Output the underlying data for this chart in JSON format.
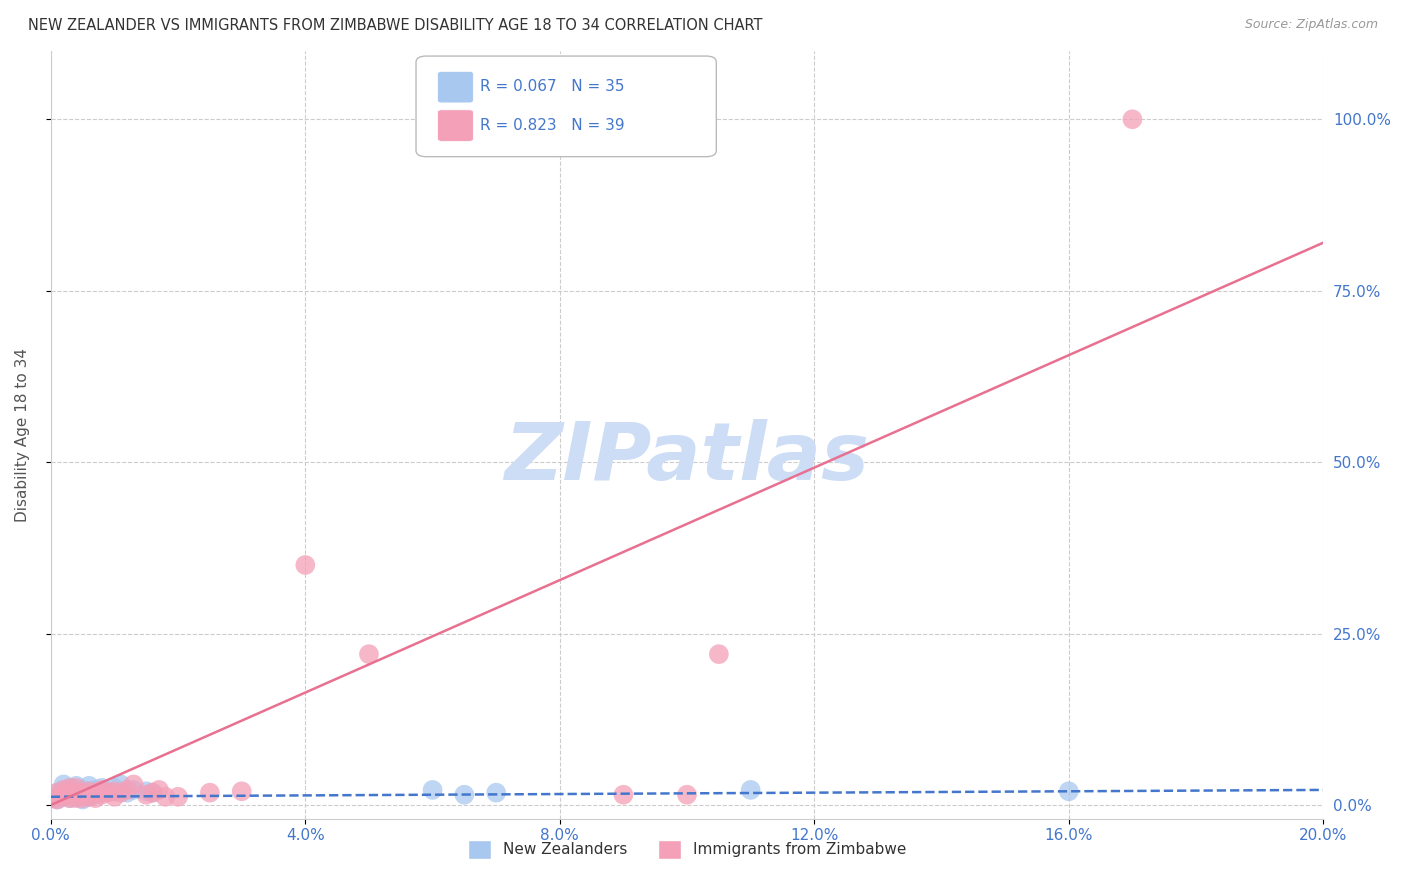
{
  "title": "NEW ZEALANDER VS IMMIGRANTS FROM ZIMBABWE DISABILITY AGE 18 TO 34 CORRELATION CHART",
  "source": "Source: ZipAtlas.com",
  "ylabel": "Disability Age 18 to 34",
  "nz_R": 0.067,
  "nz_N": 35,
  "zim_R": 0.823,
  "zim_N": 39,
  "nz_color": "#a8c8f0",
  "zim_color": "#f4a0b8",
  "nz_line_color": "#4477cc",
  "zim_line_color": "#e87090",
  "background_color": "#ffffff",
  "watermark": "ZIPatlas",
  "watermark_color": "#ccddf5",
  "xlim": [
    0.0,
    0.2
  ],
  "ylim": [
    -0.02,
    1.1
  ],
  "xticks": [
    0.0,
    0.04,
    0.08,
    0.12,
    0.16,
    0.2
  ],
  "yticks": [
    0.0,
    0.25,
    0.5,
    0.75,
    1.0
  ],
  "nz_scatter_x": [
    0.0005,
    0.001,
    0.001,
    0.0015,
    0.002,
    0.002,
    0.002,
    0.003,
    0.003,
    0.003,
    0.004,
    0.004,
    0.004,
    0.005,
    0.005,
    0.005,
    0.006,
    0.006,
    0.006,
    0.007,
    0.007,
    0.008,
    0.008,
    0.009,
    0.01,
    0.011,
    0.012,
    0.013,
    0.015,
    0.016,
    0.06,
    0.065,
    0.07,
    0.11,
    0.16
  ],
  "nz_scatter_y": [
    0.01,
    0.008,
    0.018,
    0.012,
    0.015,
    0.022,
    0.03,
    0.01,
    0.018,
    0.025,
    0.012,
    0.02,
    0.028,
    0.008,
    0.015,
    0.022,
    0.012,
    0.02,
    0.028,
    0.015,
    0.022,
    0.018,
    0.025,
    0.02,
    0.025,
    0.03,
    0.018,
    0.022,
    0.02,
    0.018,
    0.022,
    0.015,
    0.018,
    0.022,
    0.02
  ],
  "zim_scatter_x": [
    0.0005,
    0.001,
    0.001,
    0.002,
    0.002,
    0.002,
    0.003,
    0.003,
    0.003,
    0.004,
    0.004,
    0.004,
    0.005,
    0.005,
    0.006,
    0.006,
    0.007,
    0.007,
    0.008,
    0.008,
    0.009,
    0.01,
    0.01,
    0.011,
    0.012,
    0.013,
    0.015,
    0.016,
    0.017,
    0.018,
    0.02,
    0.025,
    0.03,
    0.04,
    0.05,
    0.09,
    0.1,
    0.105,
    0.17
  ],
  "zim_scatter_y": [
    0.01,
    0.008,
    0.018,
    0.012,
    0.015,
    0.022,
    0.01,
    0.018,
    0.025,
    0.01,
    0.018,
    0.025,
    0.01,
    0.018,
    0.012,
    0.02,
    0.01,
    0.018,
    0.015,
    0.022,
    0.018,
    0.012,
    0.02,
    0.018,
    0.022,
    0.03,
    0.015,
    0.018,
    0.022,
    0.012,
    0.012,
    0.018,
    0.02,
    0.35,
    0.22,
    0.015,
    0.015,
    0.22,
    1.0
  ],
  "nz_line_x": [
    0.0,
    0.2
  ],
  "nz_line_y": [
    0.012,
    0.022
  ],
  "zim_line_x": [
    0.0,
    0.2
  ],
  "zim_line_y": [
    0.0,
    0.82
  ],
  "legend_R_nz": "R = 0.067",
  "legend_N_nz": "N = 35",
  "legend_R_zim": "R = 0.823",
  "legend_N_zim": "N = 39",
  "legend_label_nz": "New Zealanders",
  "legend_label_zim": "Immigrants from Zimbabwe"
}
